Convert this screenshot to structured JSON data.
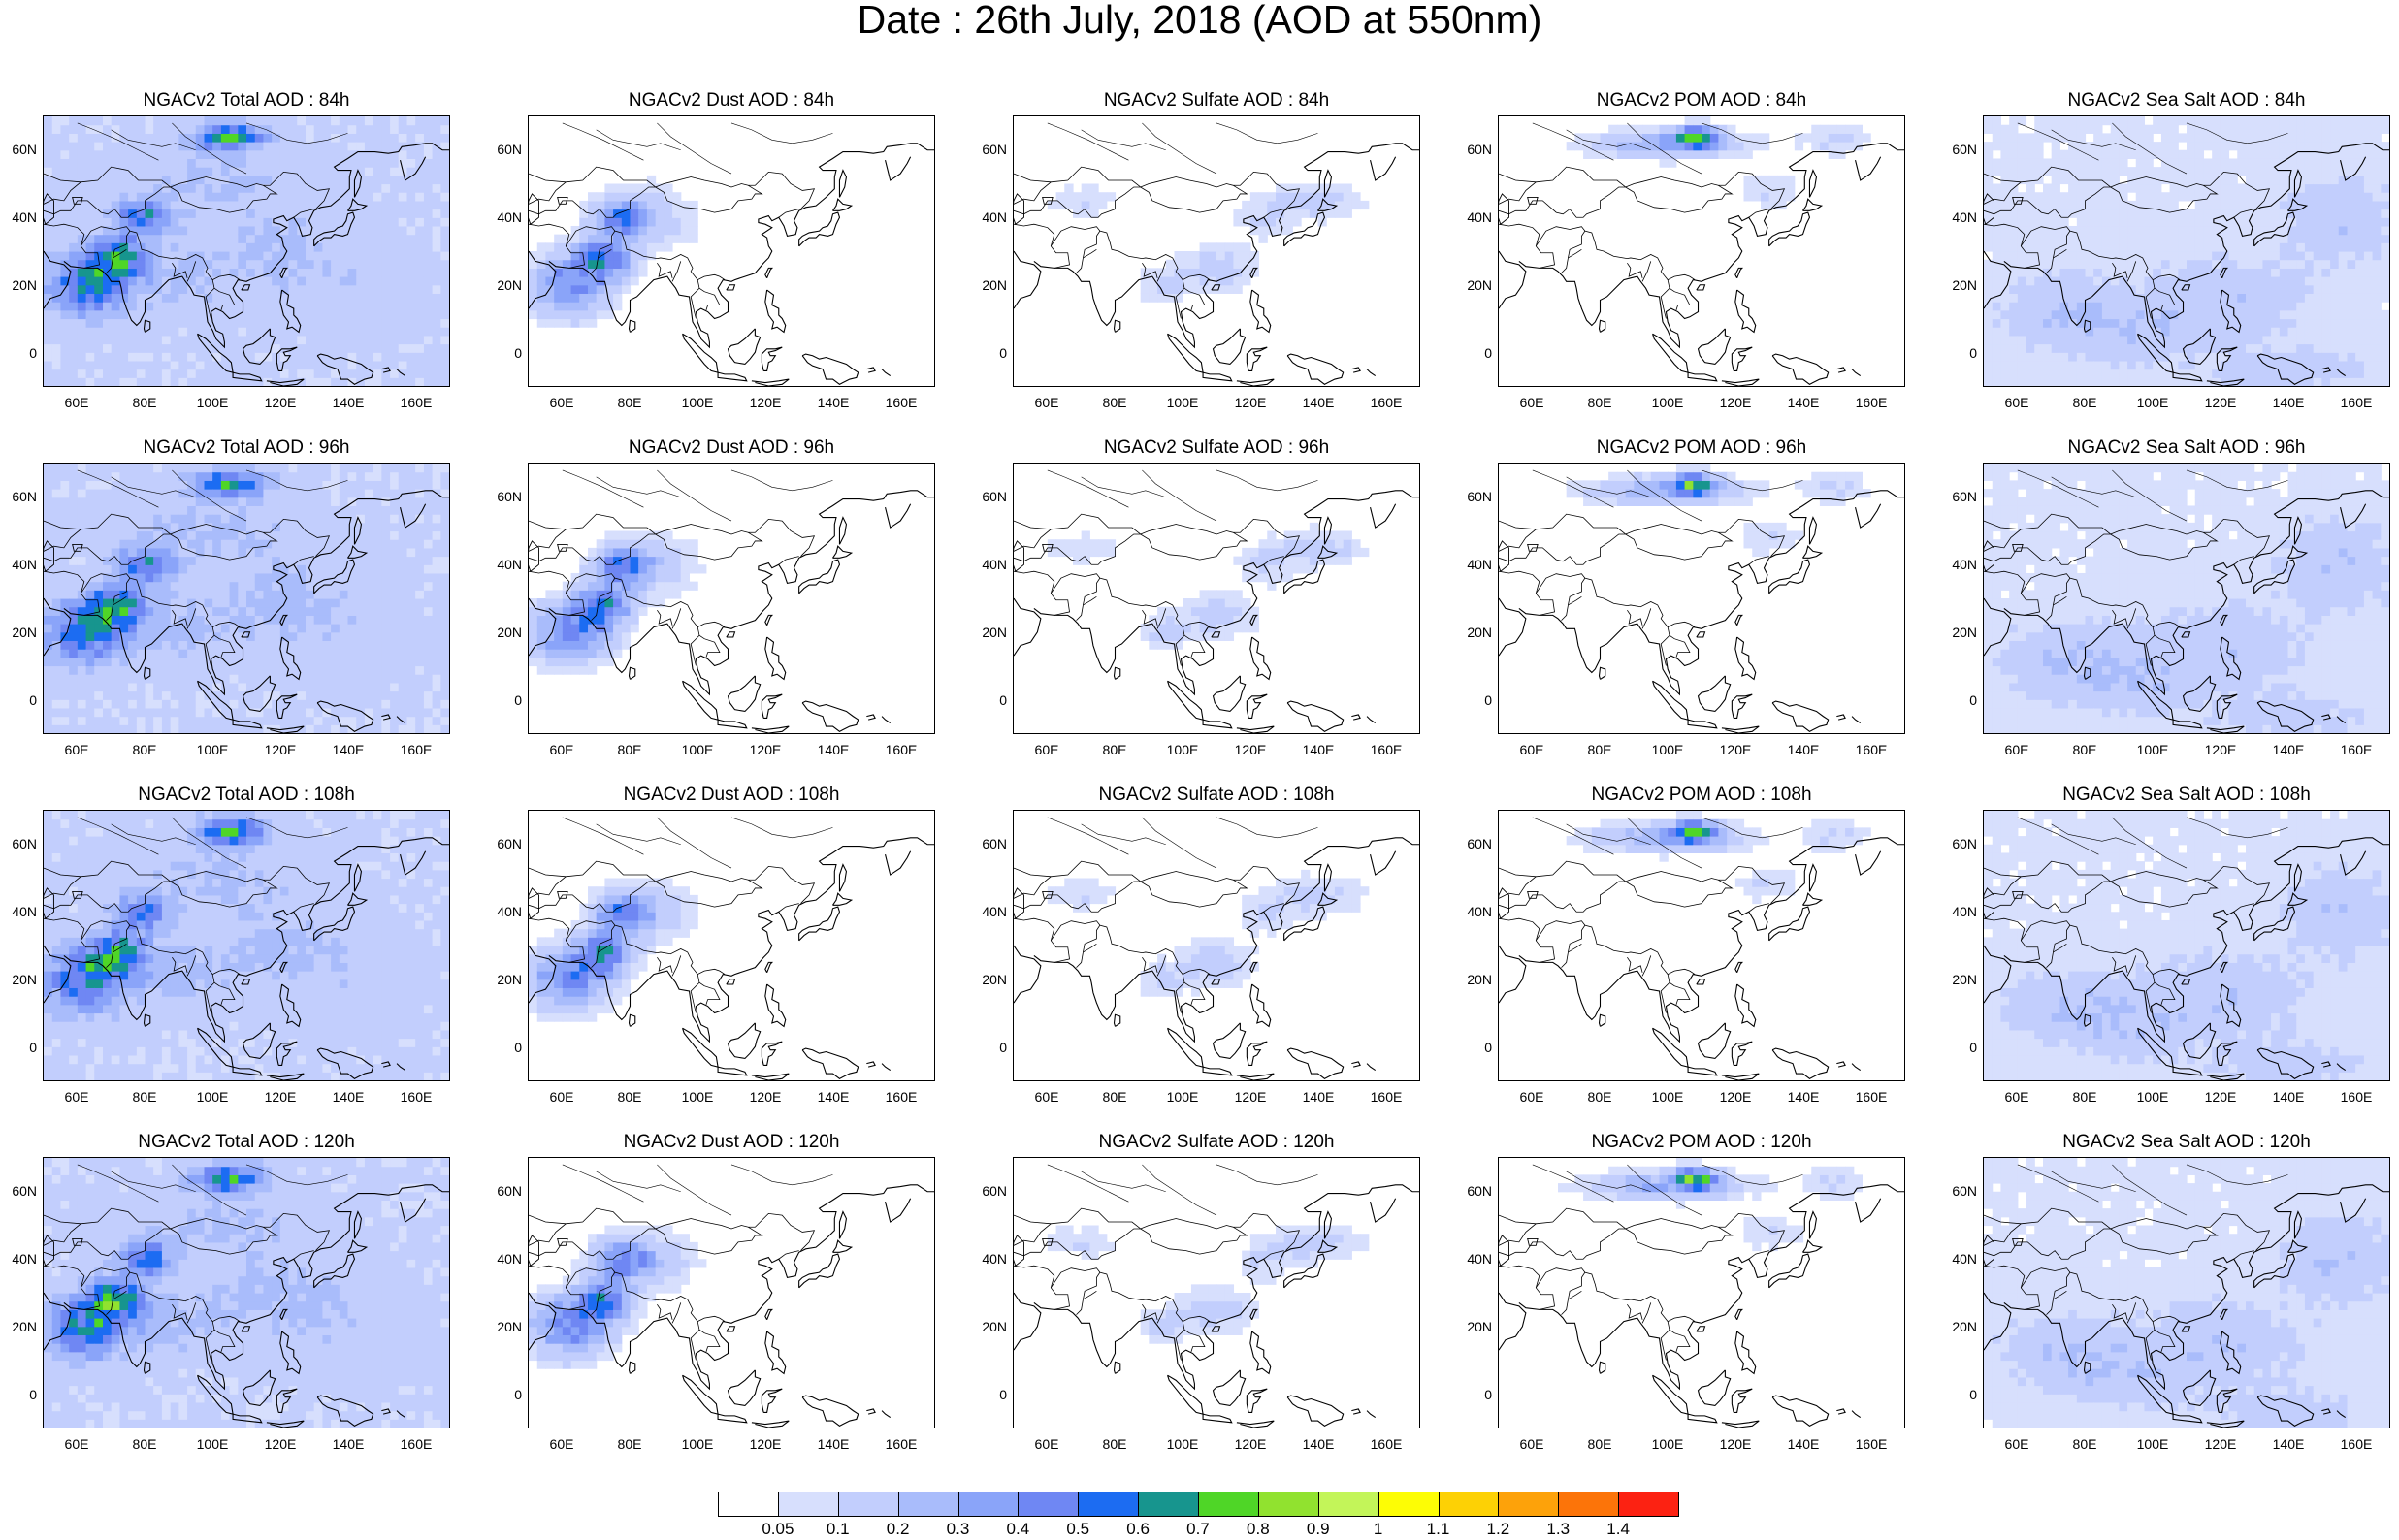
{
  "title": "Date : 26th July, 2018 (AOD at 550nm)",
  "panels": [
    {
      "title": "NGACv2 Total AOD : 84h",
      "species": "total"
    },
    {
      "title": "NGACv2 Dust AOD : 84h",
      "species": "dust"
    },
    {
      "title": "NGACv2 Sulfate AOD : 84h",
      "species": "sulfate"
    },
    {
      "title": "NGACv2 POM AOD : 84h",
      "species": "pom"
    },
    {
      "title": "NGACv2 Sea Salt AOD : 84h",
      "species": "seasalt"
    },
    {
      "title": "NGACv2 Total AOD : 96h",
      "species": "total"
    },
    {
      "title": "NGACv2 Dust AOD : 96h",
      "species": "dust"
    },
    {
      "title": "NGACv2 Sulfate AOD : 96h",
      "species": "sulfate"
    },
    {
      "title": "NGACv2 POM AOD : 96h",
      "species": "pom"
    },
    {
      "title": "NGACv2 Sea Salt AOD : 96h",
      "species": "seasalt"
    },
    {
      "title": "NGACv2 Total AOD : 108h",
      "species": "total"
    },
    {
      "title": "NGACv2 Dust AOD : 108h",
      "species": "dust"
    },
    {
      "title": "NGACv2 Sulfate AOD : 108h",
      "species": "sulfate"
    },
    {
      "title": "NGACv2 POM AOD : 108h",
      "species": "pom"
    },
    {
      "title": "NGACv2 Sea Salt AOD : 108h",
      "species": "seasalt"
    },
    {
      "title": "NGACv2 Total AOD : 120h",
      "species": "total"
    },
    {
      "title": "NGACv2 Dust AOD : 120h",
      "species": "dust"
    },
    {
      "title": "NGACv2 Sulfate AOD : 120h",
      "species": "sulfate"
    },
    {
      "title": "NGACv2 POM AOD : 120h",
      "species": "pom"
    },
    {
      "title": "NGACv2 Sea Salt  AOD : 120h",
      "species": "seasalt"
    }
  ],
  "axes": {
    "lat_ticks": [
      {
        "value": 60,
        "label": "60N"
      },
      {
        "value": 40,
        "label": "40N"
      },
      {
        "value": 20,
        "label": "20N"
      },
      {
        "value": 0,
        "label": "0"
      }
    ],
    "lon_ticks": [
      {
        "value": 60,
        "label": "60E"
      },
      {
        "value": 80,
        "label": "80E"
      },
      {
        "value": 100,
        "label": "100E"
      },
      {
        "value": 120,
        "label": "120E"
      },
      {
        "value": 140,
        "label": "140E"
      },
      {
        "value": 160,
        "label": "160E"
      }
    ],
    "lon_range": [
      50,
      170
    ],
    "lat_range": [
      -10,
      70
    ]
  },
  "colorbar": {
    "colors": [
      "#ffffff",
      "#d7dffd",
      "#c2cefd",
      "#a9bcfb",
      "#8aa4f9",
      "#6f87f3",
      "#1c6cf2",
      "#17958e",
      "#4fd627",
      "#91e22f",
      "#c3f559",
      "#fdfd05",
      "#fdd105",
      "#fda20a",
      "#fc7409",
      "#fc2212"
    ],
    "labels": [
      "0.05",
      "0.1",
      "0.2",
      "0.3",
      "0.4",
      "0.5",
      "0.6",
      "0.7",
      "0.8",
      "0.9",
      "1",
      "1.1",
      "1.2",
      "1.3",
      "1.4"
    ]
  }
}
